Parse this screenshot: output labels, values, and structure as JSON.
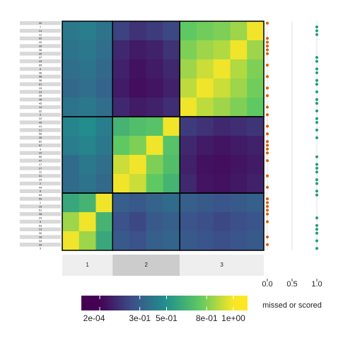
{
  "chart_data": [
    {
      "type": "heatmap",
      "row_labels": [
        "20",
        "7",
        "14",
        "12",
        "60",
        "42",
        "39",
        "36",
        "25",
        "37",
        "43",
        "65",
        "6",
        "46",
        "58",
        "38",
        "61",
        "15",
        "23",
        "26",
        "48",
        "45",
        "19",
        "32",
        "9",
        "22",
        "40",
        "41",
        "21",
        "56",
        "35",
        "62",
        "57",
        "4",
        "10",
        "50",
        "47",
        "17",
        "27",
        "11",
        "31",
        "29",
        "2",
        "44",
        "8",
        "64",
        "59",
        "1",
        "16",
        "51",
        "28",
        "24",
        "5",
        "63",
        "13",
        "30",
        "18",
        "34",
        "33",
        "3"
      ],
      "column_groups": [
        "1",
        "2",
        "3"
      ],
      "column_group_sizes": [
        15,
        20,
        25
      ],
      "matrix": [
        [
          0.4,
          0.42,
          0.38,
          0.2,
          0.15,
          0.18,
          0.22,
          0.75,
          0.78,
          0.8,
          0.85,
          0.98
        ],
        [
          0.38,
          0.4,
          0.36,
          0.12,
          0.08,
          0.1,
          0.15,
          0.8,
          0.85,
          0.88,
          0.98,
          0.85
        ],
        [
          0.36,
          0.38,
          0.34,
          0.1,
          0.05,
          0.08,
          0.12,
          0.85,
          0.92,
          0.98,
          0.88,
          0.8
        ],
        [
          0.34,
          0.36,
          0.32,
          0.08,
          0.04,
          0.06,
          0.1,
          0.9,
          0.98,
          0.92,
          0.85,
          0.78
        ],
        [
          0.38,
          0.4,
          0.36,
          0.12,
          0.08,
          0.1,
          0.14,
          0.98,
          0.9,
          0.85,
          0.8,
          0.75
        ],
        [
          0.45,
          0.48,
          0.42,
          0.65,
          0.7,
          0.72,
          0.98,
          0.18,
          0.15,
          0.12,
          0.14,
          0.16
        ],
        [
          0.42,
          0.45,
          0.4,
          0.75,
          0.8,
          0.98,
          0.72,
          0.12,
          0.08,
          0.06,
          0.08,
          0.1
        ],
        [
          0.35,
          0.4,
          0.36,
          0.92,
          0.98,
          0.8,
          0.7,
          0.1,
          0.05,
          0.04,
          0.06,
          0.08
        ],
        [
          0.35,
          0.38,
          0.34,
          0.98,
          0.92,
          0.75,
          0.65,
          0.12,
          0.06,
          0.05,
          0.07,
          0.1
        ],
        [
          0.6,
          0.65,
          0.98,
          0.3,
          0.28,
          0.32,
          0.35,
          0.3,
          0.28,
          0.26,
          0.28,
          0.3
        ],
        [
          0.85,
          0.98,
          0.65,
          0.25,
          0.22,
          0.28,
          0.3,
          0.26,
          0.24,
          0.22,
          0.24,
          0.26
        ],
        [
          0.98,
          0.85,
          0.6,
          0.28,
          0.25,
          0.3,
          0.32,
          0.28,
          0.26,
          0.24,
          0.26,
          0.28
        ]
      ],
      "clim": [
        0,
        1
      ],
      "colormap": [
        "#440154",
        "#3b528b",
        "#21918c",
        "#5ec962",
        "#fde725"
      ],
      "colorbar_ticks": [
        {
          "value": 0.0002,
          "label": "2e-04"
        },
        {
          "value": 0.3,
          "label": "3e-01"
        },
        {
          "value": 0.5,
          "label": "5e-01"
        },
        {
          "value": 0.8,
          "label": "8e-01"
        },
        {
          "value": 1,
          "label": "1e+00"
        }
      ]
    },
    {
      "type": "dot",
      "xlabel": "missed or scored",
      "xlim": [
        0,
        1
      ],
      "xticks": [
        {
          "value": 0,
          "label": "0.0"
        },
        {
          "value": 0.5,
          "label": "0.5"
        },
        {
          "value": 1,
          "label": "1.0"
        }
      ],
      "colors": [
        "#d95f02",
        "#1b9e77"
      ],
      "values": [
        0,
        1,
        1,
        1,
        0,
        0,
        0,
        0,
        0,
        1,
        1,
        0,
        1,
        1,
        0,
        1,
        1,
        0,
        1,
        0,
        1,
        1,
        0,
        1,
        0,
        1,
        1,
        0,
        1,
        0,
        1,
        0,
        0,
        0,
        0,
        1,
        0,
        1,
        1,
        1,
        0,
        1,
        1,
        0,
        1,
        1,
        0,
        0,
        0,
        0,
        0,
        1,
        0,
        1,
        1,
        1,
        0,
        1,
        0,
        1
      ]
    }
  ]
}
